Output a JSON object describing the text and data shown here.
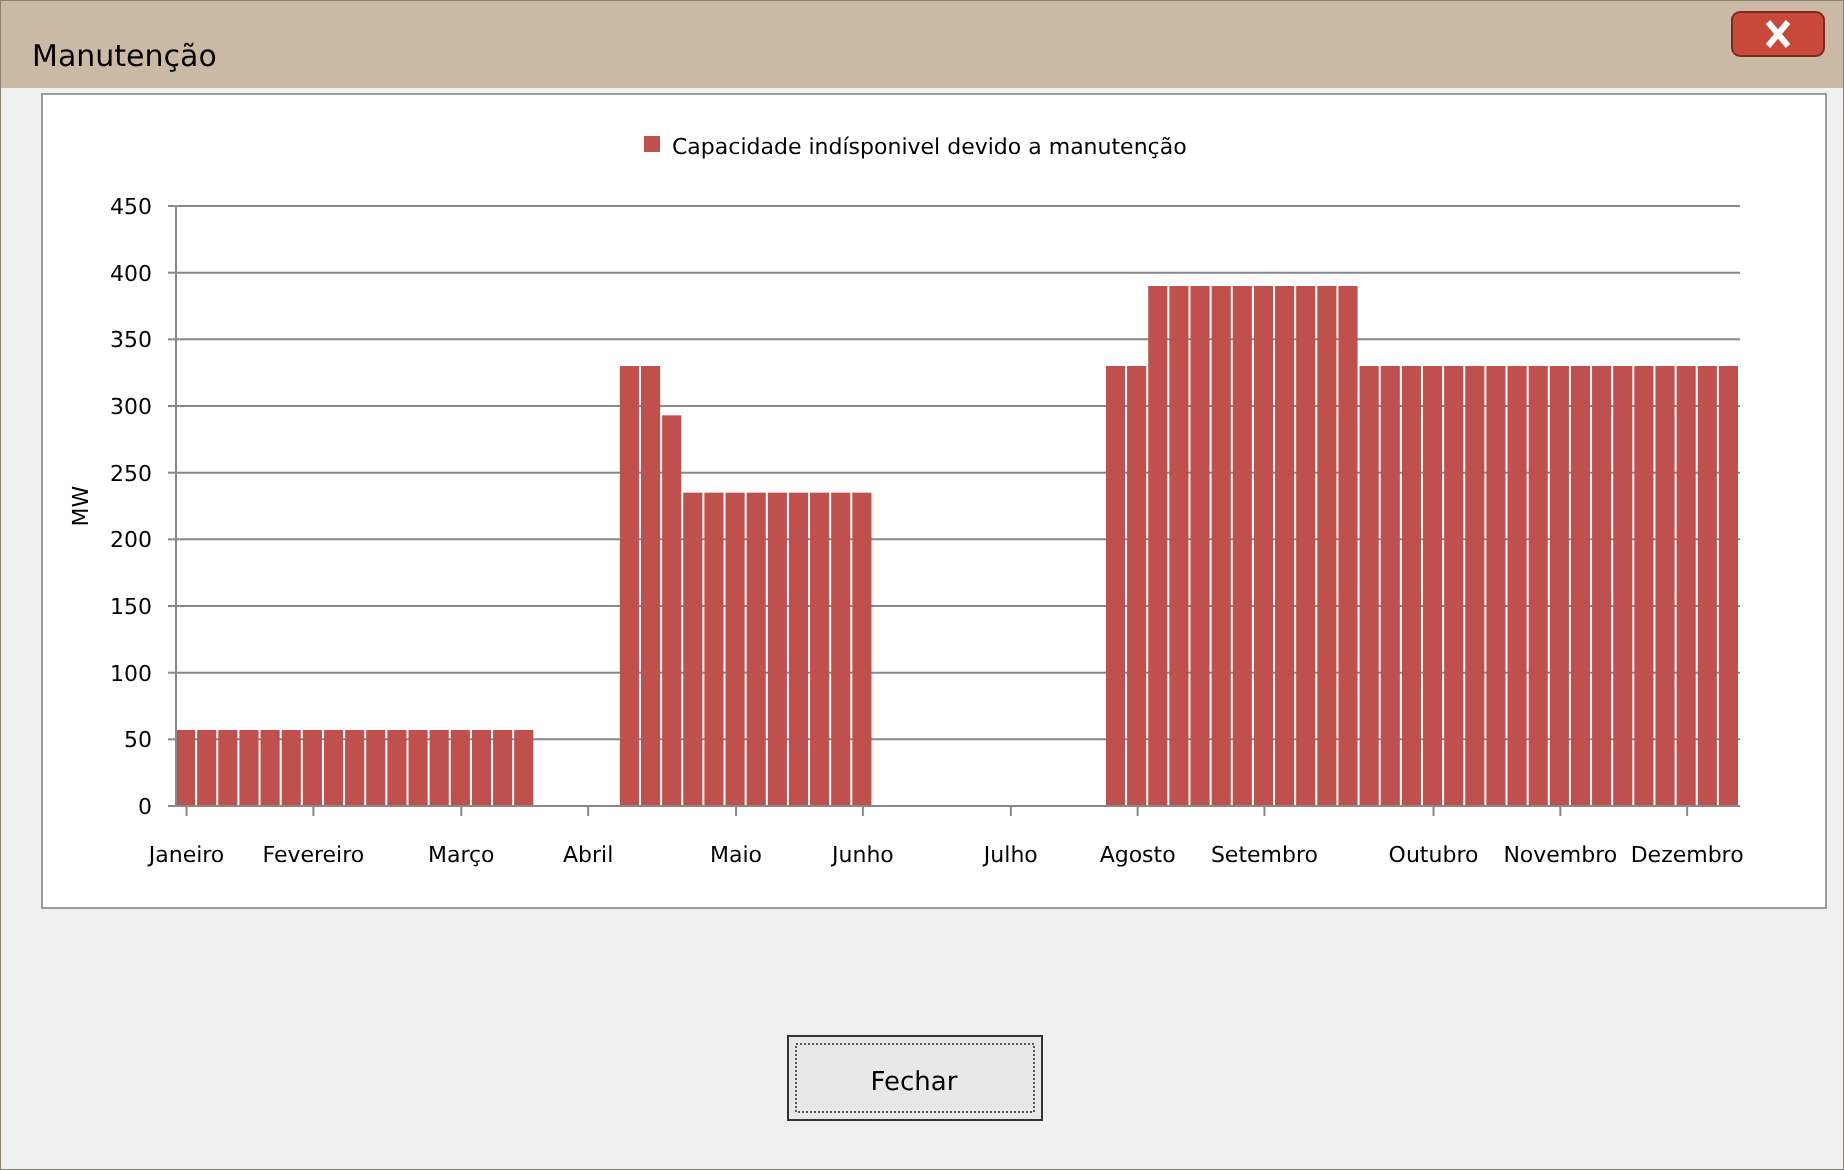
{
  "chart_data": {
    "type": "bar",
    "title": "Manutenção",
    "ylabel": "MW",
    "categories": [
      "Janeiro",
      null,
      null,
      null,
      null,
      null,
      "Fevereiro",
      null,
      null,
      null,
      null,
      null,
      null,
      "Março",
      null,
      null,
      null,
      null,
      null,
      "Abril",
      null,
      null,
      null,
      null,
      null,
      null,
      "Maio",
      null,
      null,
      null,
      null,
      null,
      "Junho",
      null,
      null,
      null,
      null,
      null,
      null,
      "Julho",
      null,
      null,
      null,
      null,
      null,
      "Agosto",
      null,
      null,
      null,
      null,
      null,
      "Setembro",
      null,
      null,
      null,
      null,
      null,
      null,
      null,
      "Outubro",
      null,
      null,
      null,
      null,
      null,
      "Novembro",
      null,
      null,
      null,
      null,
      null,
      "Dezembro",
      null,
      null
    ],
    "series": [
      {
        "name": "Capacidade indísponivel devido a manutenção",
        "color": "#c0504d",
        "values": [
          57,
          57,
          57,
          57,
          57,
          57,
          57,
          57,
          57,
          57,
          57,
          57,
          57,
          57,
          57,
          57,
          57,
          null,
          null,
          null,
          null,
          330,
          330,
          293,
          235,
          235,
          235,
          235,
          235,
          235,
          235,
          235,
          235,
          null,
          null,
          null,
          null,
          null,
          null,
          null,
          null,
          null,
          null,
          null,
          330,
          330,
          390,
          390,
          390,
          390,
          390,
          390,
          390,
          390,
          390,
          390,
          330,
          330,
          330,
          330,
          330,
          330,
          330,
          330,
          330,
          330,
          330,
          330,
          330,
          330,
          330,
          330,
          330,
          330
        ]
      }
    ],
    "ylim": [
      0,
      450
    ],
    "yticks": [
      0,
      50,
      100,
      150,
      200,
      250,
      300,
      350,
      400,
      450
    ],
    "grid": "y",
    "legend": "top",
    "annotations": [
      "Fechar"
    ]
  }
}
